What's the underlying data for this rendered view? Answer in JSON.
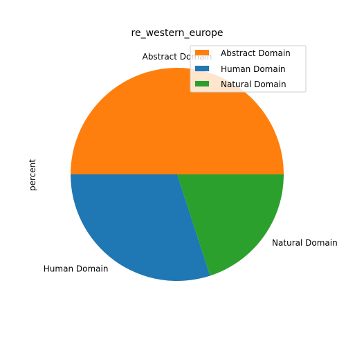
{
  "chart_data": {
    "type": "pie",
    "title": "re_western_europe",
    "ylabel": "percent",
    "slices": [
      {
        "label": "Abstract Domain",
        "value": 50,
        "color": "#ff7f0e"
      },
      {
        "label": "Human Domain",
        "value": 30,
        "color": "#1f77b4"
      },
      {
        "label": "Natural Domain",
        "value": 20,
        "color": "#2ca02c"
      }
    ],
    "legend": {
      "position": "top-right",
      "entries": [
        "Abstract Domain",
        "Human Domain",
        "Natural Domain"
      ]
    }
  }
}
